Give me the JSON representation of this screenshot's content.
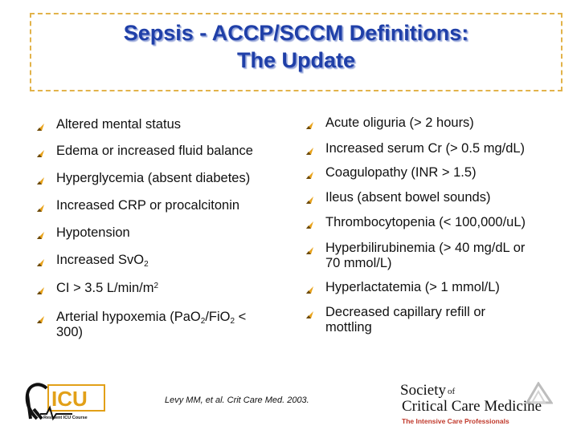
{
  "slide": {
    "title_line1": "Sepsis - ACCP/SCCM Definitions:",
    "title_line2": "The Update",
    "left_items": [
      {
        "text": "Altered mental status"
      },
      {
        "text": "Edema or increased fluid balance"
      },
      {
        "text": "Hyperglycemia (absent diabetes)"
      },
      {
        "text": "Increased CRP or procalcitonin"
      },
      {
        "text": "Hypotension"
      },
      {
        "pre": "Increased SvO",
        "sub": "2"
      },
      {
        "pre": "CI > 3.5 L/min/m",
        "sup": "2"
      },
      {
        "pre": "Arterial hypoxemia (PaO",
        "sub1": "2",
        "mid": "/FiO",
        "sub2": "2",
        "post": " <",
        "line2": "300)"
      }
    ],
    "right_items": [
      {
        "text": "Acute oliguria (> 2 hours)"
      },
      {
        "text": "Increased serum Cr (> 0.5 mg/dL)"
      },
      {
        "text": "Coagulopathy (INR > 1.5)"
      },
      {
        "text": "Ileus (absent bowel sounds)"
      },
      {
        "text": "Thrombocytopenia (< 100,000/uL)"
      },
      {
        "text": "Hyperbilirubinemia (> 40 mg/dL or",
        "line2": "70 mmol/L)"
      },
      {
        "text": "Hyperlactatemia (> 1 mmol/L)"
      },
      {
        "text": "Decreased capillary refill or",
        "line2": "mottling"
      }
    ],
    "citation": "Levy MM, et al. Crit Care Med. 2003.",
    "logo_left_caption": "Resident ICU Course",
    "logo_right": {
      "society": "Society",
      "of": "of",
      "ccm": "Critical Care Medicine",
      "tagline": "The Intensive Care Professionals"
    },
    "colors": {
      "title": "#1f3fa8",
      "frame": "#e2b34a",
      "bullet": "#e8a21a"
    }
  }
}
